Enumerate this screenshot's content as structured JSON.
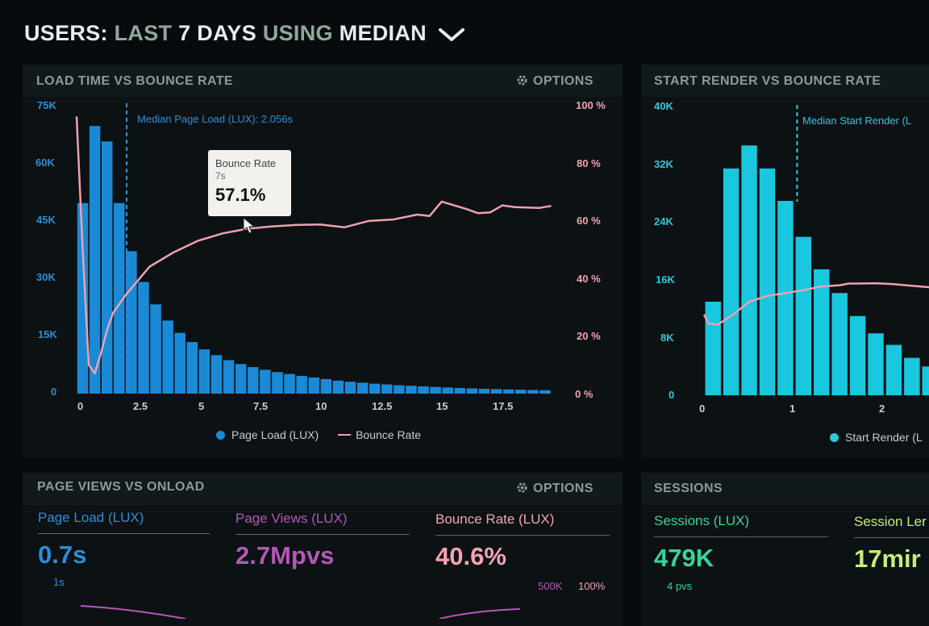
{
  "header": {
    "part1": "USERS:",
    "part2": "LAST",
    "part3": "7 DAYS",
    "part4": "USING",
    "part5": "MEDIAN"
  },
  "panel1": {
    "title": "LOAD TIME VS BOUNCE RATE",
    "options_label": "OPTIONS",
    "median_note": "Median Page Load (LUX): 2.056s",
    "tooltip": {
      "label": "Bounce Rate",
      "x": "7s",
      "value": "57.1%"
    },
    "legend": [
      "Page Load (LUX)",
      "Bounce Rate"
    ]
  },
  "panel2": {
    "title": "START RENDER VS BOUNCE RATE",
    "median_note": "Median Start Render (L",
    "legend": "Start Render (L"
  },
  "panel3": {
    "title": "PAGE VIEWS VS ONLOAD",
    "options_label": "OPTIONS",
    "metrics": [
      {
        "label": "Page Load (LUX)",
        "value": "0.7s",
        "sub": "1s"
      },
      {
        "label": "Page Views (LUX)",
        "value": "2.7Mpvs",
        "sub": "500K"
      },
      {
        "label": "Bounce Rate (LUX)",
        "value": "40.6%",
        "sub": "100%"
      }
    ]
  },
  "panel4": {
    "title": "SESSIONS",
    "metrics": [
      {
        "label": "Sessions (LUX)",
        "value": "479K",
        "sub": "4 pvs"
      },
      {
        "label": "Session Ler",
        "value": "17mir"
      }
    ]
  },
  "colors": {
    "bar_blue": "#1a8ad6",
    "bar_cyan": "#19c7df",
    "bounce_pink": "#f0a0b0",
    "page_views_purple": "#b457b7",
    "sessions_green": "#37d49a",
    "session_len_yellow": "#c6ec7a"
  },
  "chart_data": [
    {
      "type": "bar",
      "title": "LOAD TIME VS BOUNCE RATE",
      "x_ticks": [
        "0",
        "2.5",
        "5",
        "7.5",
        "10",
        "12.5",
        "15",
        "17.5"
      ],
      "y_left_ticks": [
        "0",
        "15K",
        "30K",
        "45K",
        "60K",
        "75K"
      ],
      "y_right_ticks": [
        "0 %",
        "20 %",
        "40 %",
        "60 %",
        "80 %",
        "100 %"
      ],
      "xlim": [
        0,
        19.75
      ],
      "ylim": [
        0,
        75000
      ],
      "y2lim": [
        0,
        100
      ],
      "median_x": 2.056,
      "series": [
        {
          "name": "Page Load (LUX)",
          "type": "bar",
          "x": [
            0,
            0.5,
            1,
            1.5,
            2,
            2.5,
            3,
            3.5,
            4,
            4.5,
            5,
            5.5,
            6,
            6.5,
            7,
            7.5,
            8,
            8.5,
            9,
            9.5,
            10,
            10.5,
            11,
            11.5,
            12,
            12.5,
            13,
            13.5,
            14,
            14.5,
            15,
            15.5,
            16,
            16.5,
            17,
            17.5,
            18,
            18.5,
            19
          ],
          "values": [
            49500,
            69500,
            65500,
            49500,
            37000,
            29000,
            23200,
            19000,
            15800,
            13400,
            11500,
            10000,
            8700,
            7700,
            6900,
            6200,
            5600,
            5100,
            4600,
            4200,
            3800,
            3400,
            3100,
            2850,
            2600,
            2400,
            2200,
            2050,
            1900,
            1750,
            1600,
            1480,
            1370,
            1270,
            1180,
            1100,
            1030,
            960,
            900
          ]
        },
        {
          "name": "Bounce Rate",
          "type": "line",
          "x": [
            0,
            0.25,
            0.5,
            0.75,
            1,
            1.25,
            1.5,
            2,
            2.5,
            3,
            4,
            5,
            6,
            7,
            8,
            9,
            10,
            11,
            12,
            13,
            14,
            14.5,
            15,
            16,
            16.5,
            17,
            17.5,
            18,
            19,
            19.5
          ],
          "values": [
            96,
            50,
            10,
            7,
            14,
            22,
            28,
            34,
            39,
            44,
            49,
            53,
            55.5,
            57.1,
            57.9,
            58.4,
            58.6,
            57.6,
            59.8,
            60.3,
            62,
            61.5,
            66.5,
            64,
            62.5,
            62.8,
            65.2,
            64.6,
            64.3,
            65
          ]
        }
      ]
    },
    {
      "type": "bar",
      "title": "START RENDER VS BOUNCE RATE",
      "x_ticks": [
        "0",
        "1",
        "2"
      ],
      "y_left_ticks": [
        "0",
        "8K",
        "16K",
        "24K",
        "32K",
        "40K"
      ],
      "xlim": [
        0,
        2.56
      ],
      "ylim": [
        0,
        40000
      ],
      "median_x": 1.03,
      "series": [
        {
          "name": "Start Render (L",
          "type": "bar",
          "x": [
            0.1,
            0.3,
            0.5,
            0.7,
            0.9,
            1.1,
            1.3,
            1.5,
            1.7,
            1.9,
            2.1,
            2.3,
            2.5
          ],
          "values": [
            13000,
            31500,
            34700,
            31500,
            27000,
            22000,
            17500,
            14200,
            11000,
            8600,
            7000,
            5200,
            4000
          ]
        },
        {
          "name": "Bounce Rate",
          "type": "line",
          "x": [
            0,
            0.05,
            0.15,
            0.3,
            0.5,
            0.7,
            0.9,
            1.1,
            1.3,
            1.5,
            1.6,
            1.7,
            1.9,
            2.1,
            2.3,
            2.5
          ],
          "values": [
            28,
            25,
            24.5,
            27.5,
            32.5,
            34.5,
            35.5,
            36.5,
            37.8,
            38.2,
            38.8,
            38.8,
            38.9,
            38.6,
            38,
            37.5
          ]
        }
      ]
    }
  ]
}
